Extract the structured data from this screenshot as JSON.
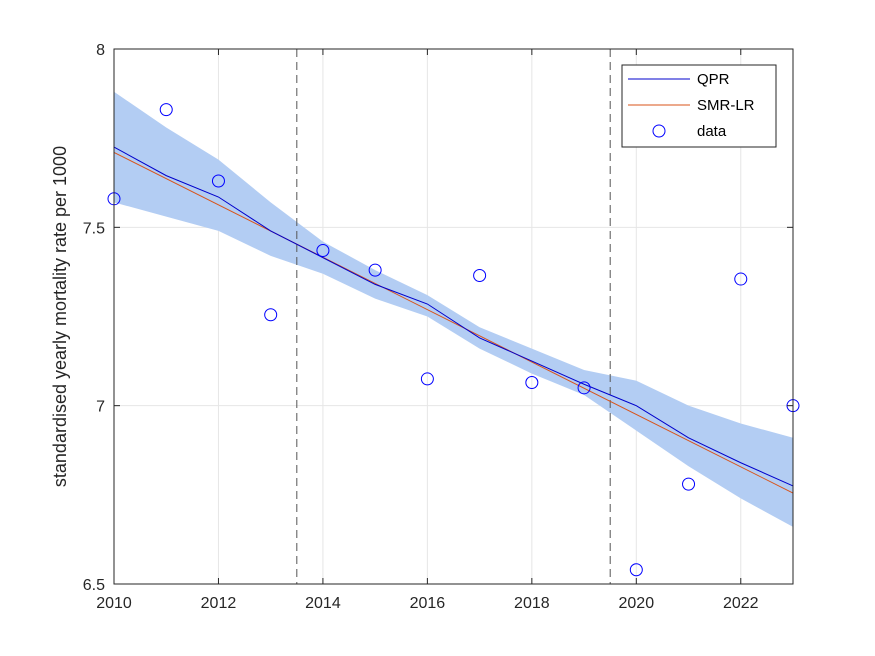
{
  "chart_data": {
    "type": "line",
    "title": "",
    "xlabel": "",
    "ylabel": "standardised yearly mortality rate per 1000",
    "xlim": [
      2010,
      2023
    ],
    "ylim": [
      6.5,
      8
    ],
    "xticks": [
      2010,
      2012,
      2014,
      2016,
      2018,
      2020,
      2022
    ],
    "xtick_labels": [
      "2010",
      "2012",
      "2014",
      "2016",
      "2018",
      "2020",
      "2022"
    ],
    "yticks": [
      6.5,
      7,
      7.5,
      8
    ],
    "ytick_labels": [
      "6.5",
      "7",
      "7.5",
      "8"
    ],
    "grid": true,
    "legend_position": "top-right",
    "colors": {
      "qpr": "#0000cc",
      "smr": "#d95319",
      "band": "#b3cdf3",
      "data": "#0000ff",
      "vline": "#555555",
      "grid": "#e6e6e6",
      "axis": "#262626"
    },
    "vertical_lines": [
      2013.5,
      2019.5
    ],
    "band": {
      "x": [
        2010,
        2011,
        2012,
        2013,
        2014,
        2015,
        2016,
        2017,
        2018,
        2019,
        2020,
        2021,
        2022,
        2023
      ],
      "upper": [
        7.88,
        7.78,
        7.69,
        7.57,
        7.46,
        7.38,
        7.31,
        7.22,
        7.16,
        7.1,
        7.07,
        7.0,
        6.95,
        6.91
      ],
      "lower": [
        7.57,
        7.53,
        7.49,
        7.42,
        7.37,
        7.3,
        7.25,
        7.16,
        7.09,
        7.03,
        6.93,
        6.83,
        6.74,
        6.66
      ]
    },
    "series": [
      {
        "name": "QPR",
        "x": [
          2010,
          2011,
          2012,
          2013,
          2014,
          2015,
          2016,
          2017,
          2018,
          2019,
          2020,
          2021,
          2022,
          2023
        ],
        "values": [
          7.725,
          7.645,
          7.585,
          7.49,
          7.415,
          7.34,
          7.285,
          7.19,
          7.125,
          7.06,
          7.0,
          6.91,
          6.84,
          6.775
        ]
      },
      {
        "name": "SMR-LR",
        "x": [
          2010,
          2023
        ],
        "values": [
          7.71,
          6.755
        ]
      },
      {
        "name": "data",
        "x": [
          2010,
          2011,
          2012,
          2013,
          2014,
          2015,
          2016,
          2017,
          2018,
          2019,
          2020,
          2021,
          2022,
          2023
        ],
        "values": [
          7.58,
          7.83,
          7.63,
          7.255,
          7.435,
          7.38,
          7.075,
          7.365,
          7.065,
          7.05,
          6.54,
          6.78,
          7.355,
          7.0
        ]
      }
    ]
  }
}
